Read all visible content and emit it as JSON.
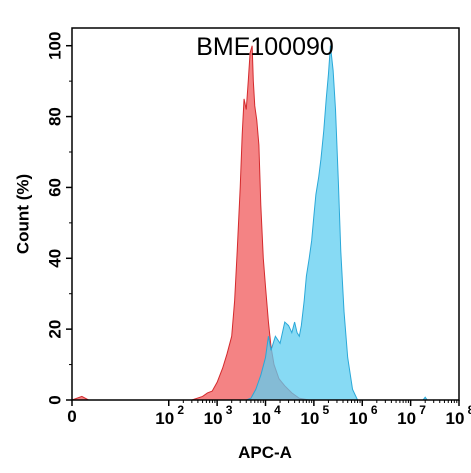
{
  "chart_data": {
    "type": "area",
    "title": "BME100090",
    "xlabel": "APC-A",
    "ylabel": "Count  (%)",
    "x_scale": "log",
    "xlim": [
      1,
      100000000
    ],
    "ylim": [
      0,
      105
    ],
    "x_ticks": [
      {
        "value": 1,
        "label": "0"
      },
      {
        "value": 100,
        "base": "10",
        "exp": "2"
      },
      {
        "value": 1000,
        "base": "10",
        "exp": "3"
      },
      {
        "value": 10000,
        "base": "10",
        "exp": "4"
      },
      {
        "value": 100000,
        "base": "10",
        "exp": "5"
      },
      {
        "value": 1000000,
        "base": "10",
        "exp": "6"
      },
      {
        "value": 10000000,
        "base": "10",
        "exp": "7"
      },
      {
        "value": 100000000,
        "base": "10",
        "exp": "8"
      }
    ],
    "y_ticks": [
      0,
      20,
      40,
      60,
      80,
      100
    ],
    "grid": false,
    "series": [
      {
        "fill": "#f0595b",
        "stroke": "#d42a2d",
        "points": [
          [
            1,
            0
          ],
          [
            1.6,
            1
          ],
          [
            2.2,
            0
          ],
          [
            300,
            0
          ],
          [
            500,
            1
          ],
          [
            630,
            2
          ],
          [
            790,
            2.5
          ],
          [
            1000,
            5
          ],
          [
            1300,
            9
          ],
          [
            1600,
            13
          ],
          [
            2000,
            18
          ],
          [
            2300,
            28
          ],
          [
            2600,
            42
          ],
          [
            3000,
            60
          ],
          [
            3300,
            75
          ],
          [
            3600,
            85
          ],
          [
            4000,
            82
          ],
          [
            4400,
            90
          ],
          [
            4800,
            98
          ],
          [
            5300,
            100
          ],
          [
            5600,
            90
          ],
          [
            6000,
            83
          ],
          [
            6600,
            79
          ],
          [
            7300,
            72
          ],
          [
            8000,
            55
          ],
          [
            9000,
            40
          ],
          [
            10000,
            32
          ],
          [
            11500,
            22
          ],
          [
            13000,
            15
          ],
          [
            15000,
            10
          ],
          [
            19000,
            6
          ],
          [
            25000,
            4
          ],
          [
            35000,
            2
          ],
          [
            50000,
            0.5
          ],
          [
            80000,
            0
          ]
        ]
      },
      {
        "fill": "#5fcdf0",
        "stroke": "#2aa8d8",
        "points": [
          [
            4000,
            0
          ],
          [
            5000,
            0.5
          ],
          [
            6300,
            3
          ],
          [
            8000,
            7
          ],
          [
            10000,
            12
          ],
          [
            11500,
            18
          ],
          [
            13000,
            14
          ],
          [
            16000,
            18
          ],
          [
            20000,
            16
          ],
          [
            25000,
            22
          ],
          [
            30000,
            21
          ],
          [
            35000,
            19
          ],
          [
            40000,
            22
          ],
          [
            45000,
            19
          ],
          [
            50000,
            18
          ],
          [
            55000,
            21
          ],
          [
            63000,
            28
          ],
          [
            70000,
            35
          ],
          [
            80000,
            40
          ],
          [
            90000,
            45
          ],
          [
            100000,
            52
          ],
          [
            110000,
            58
          ],
          [
            126000,
            63
          ],
          [
            140000,
            68
          ],
          [
            160000,
            76
          ],
          [
            180000,
            85
          ],
          [
            200000,
            92
          ],
          [
            220000,
            100
          ],
          [
            250000,
            93
          ],
          [
            280000,
            82
          ],
          [
            320000,
            62
          ],
          [
            360000,
            42
          ],
          [
            420000,
            25
          ],
          [
            500000,
            12
          ],
          [
            630000,
            3
          ],
          [
            800000,
            0
          ],
          [
            18000000,
            0
          ],
          [
            20000000,
            0.8
          ],
          [
            22000000,
            0
          ]
        ]
      }
    ]
  }
}
